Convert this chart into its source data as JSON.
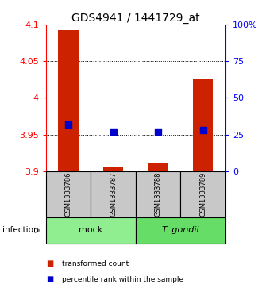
{
  "title": "GDS4941 / 1441729_at",
  "samples": [
    "GSM1333786",
    "GSM1333787",
    "GSM1333788",
    "GSM1333789"
  ],
  "red_values": [
    4.092,
    3.905,
    3.912,
    4.025
  ],
  "blue_values_pct": [
    32,
    27,
    27,
    28
  ],
  "ylim_left": [
    3.9,
    4.1
  ],
  "ylim_right": [
    0,
    100
  ],
  "yticks_left": [
    3.9,
    3.95,
    4.0,
    4.05,
    4.1
  ],
  "yticks_right": [
    0,
    25,
    50,
    75,
    100
  ],
  "ytick_labels_left": [
    "3.9",
    "3.95",
    "4",
    "4.05",
    "4.1"
  ],
  "ytick_labels_right": [
    "0",
    "25",
    "50",
    "75",
    "100%"
  ],
  "groups": [
    {
      "label": "mock",
      "samples": [
        0,
        1
      ],
      "color": "#90EE90"
    },
    {
      "label": "T. gondii",
      "samples": [
        2,
        3
      ],
      "color": "#66DD66"
    }
  ],
  "group_label": "infection",
  "bar_color": "#CC2200",
  "dot_color": "#0000CC",
  "bar_width": 0.45,
  "dot_size": 30,
  "legend_red": "transformed count",
  "legend_blue": "percentile rank within the sample",
  "bg_color_sample": "#C8C8C8",
  "title_fontsize": 10,
  "axis_fontsize": 8
}
